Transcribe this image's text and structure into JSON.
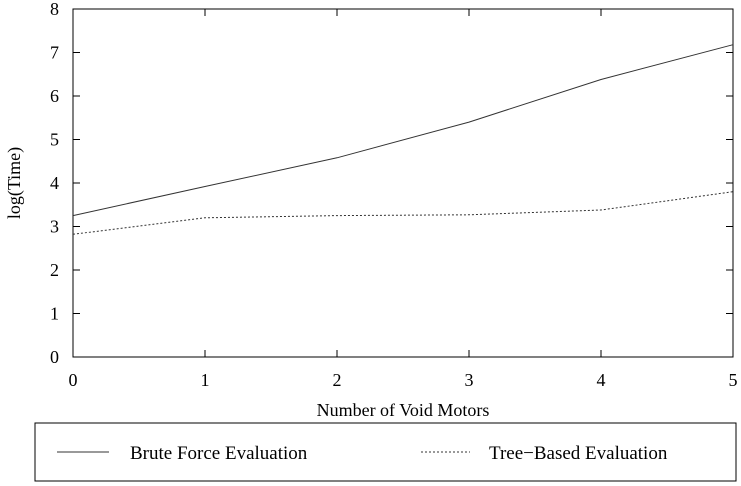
{
  "chart_data": {
    "type": "line",
    "title": "",
    "xlabel": "Number of Void Motors",
    "ylabel": "log(Time)",
    "xlim": [
      0,
      5
    ],
    "ylim": [
      0,
      8
    ],
    "xticks": [
      0,
      1,
      2,
      3,
      4,
      5
    ],
    "yticks": [
      0,
      1,
      2,
      3,
      4,
      5,
      6,
      7,
      8
    ],
    "grid": false,
    "legend_position": "bottom",
    "series": [
      {
        "name": "Brute Force Evaluation",
        "style": "solid",
        "color": "#333333",
        "x": [
          0,
          1,
          2,
          3,
          4,
          5
        ],
        "y": [
          3.25,
          3.92,
          4.58,
          5.4,
          6.38,
          7.18
        ]
      },
      {
        "name": "Tree−Based Evaluation",
        "style": "dotted",
        "color": "#333333",
        "x": [
          0,
          1,
          2,
          3,
          4,
          5
        ],
        "y": [
          2.82,
          3.2,
          3.25,
          3.27,
          3.38,
          3.8
        ]
      }
    ]
  }
}
